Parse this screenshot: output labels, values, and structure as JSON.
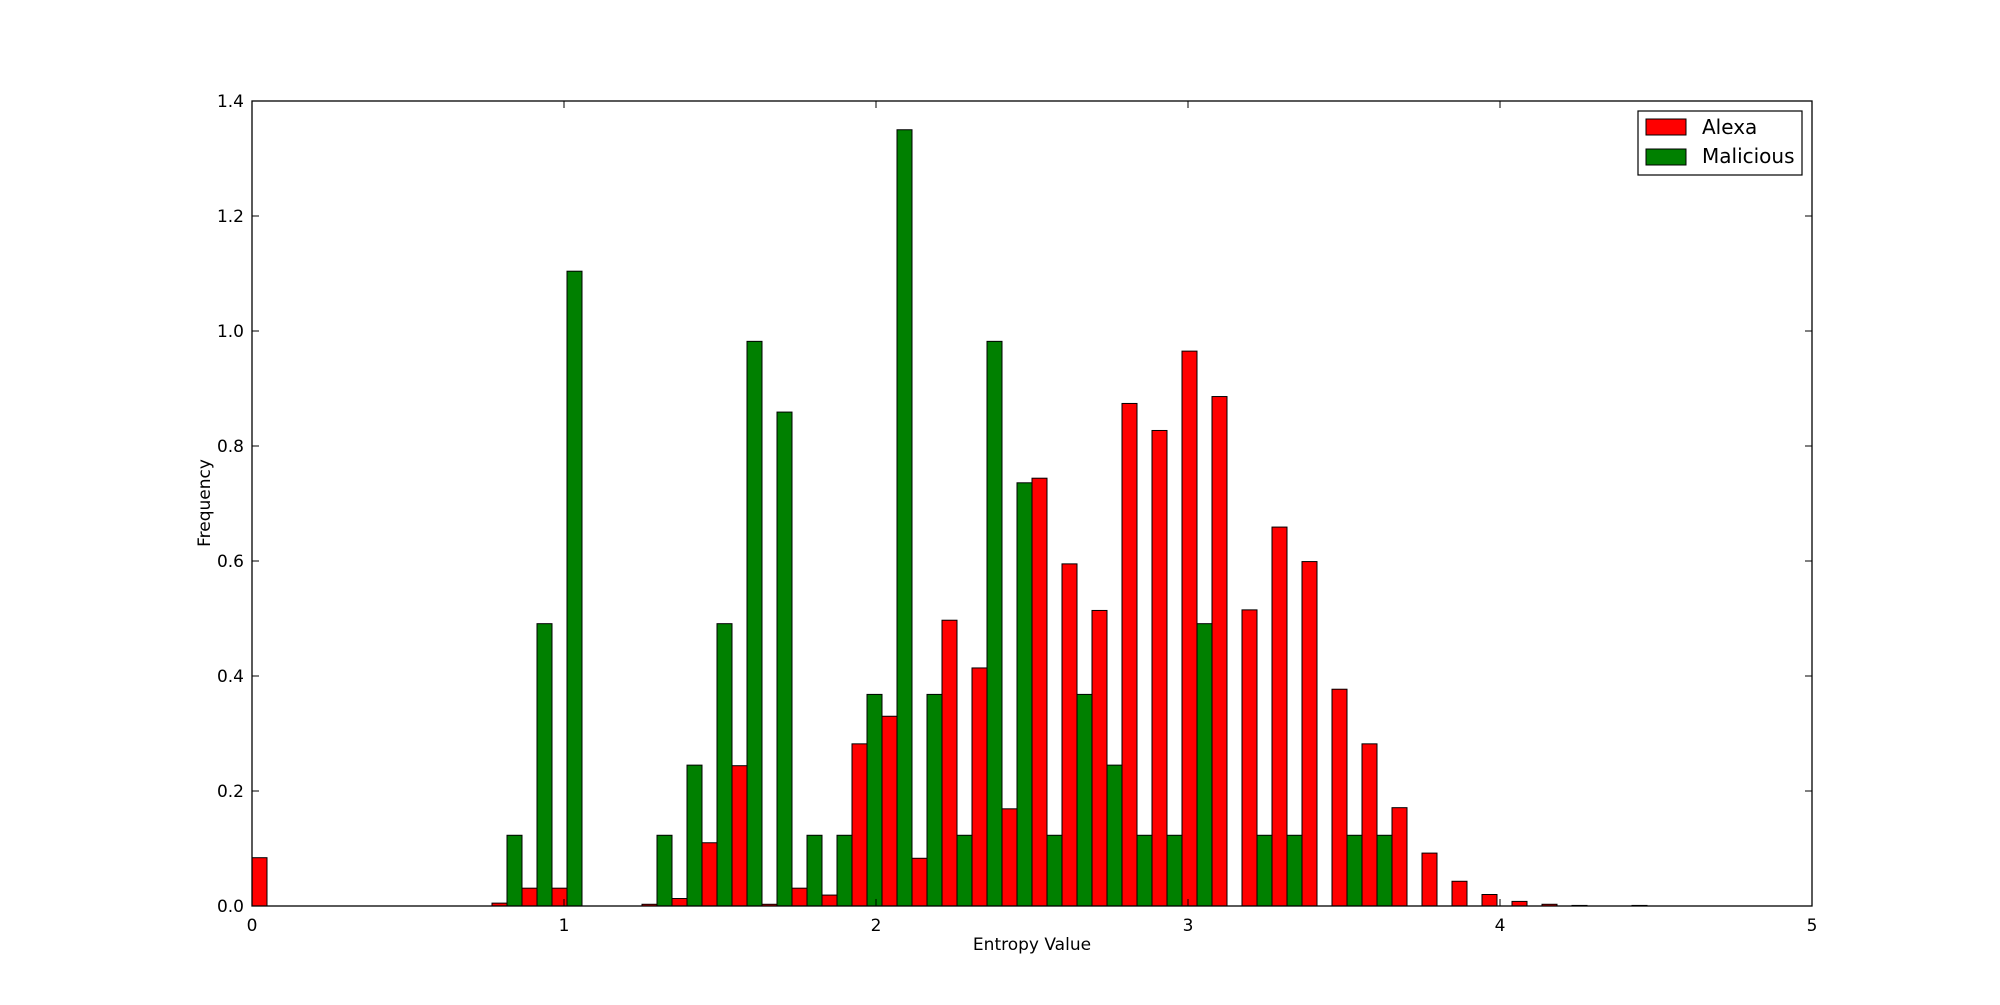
{
  "chart_data": {
    "type": "bar",
    "title": "",
    "xlabel": "Entropy Value",
    "ylabel": "Frequency",
    "xlim": [
      0,
      5
    ],
    "ylim": [
      0,
      1.4
    ],
    "xticks": [
      "0",
      "1",
      "2",
      "3",
      "4",
      "5"
    ],
    "yticks": [
      "0.0",
      "0.2",
      "0.4",
      "0.6",
      "0.8",
      "1.0",
      "1.2",
      "1.4"
    ],
    "grid": false,
    "legend_position": "top-right",
    "bins": 52,
    "series": [
      {
        "name": "Alexa",
        "color": "#ff0000",
        "values": [
          0.084,
          0.0,
          0.0,
          0.0,
          0.0,
          0.0,
          0.0,
          0.0,
          0.005,
          0.031,
          0.031,
          0.0,
          0.0,
          0.003,
          0.013,
          0.11,
          0.244,
          0.003,
          0.031,
          0.019,
          0.282,
          0.33,
          0.083,
          0.497,
          0.414,
          0.169,
          0.744,
          0.595,
          0.514,
          0.874,
          0.827,
          0.965,
          0.886,
          0.515,
          0.659,
          0.599,
          0.377,
          0.282,
          0.171,
          0.092,
          0.043,
          0.02,
          0.008,
          0.003,
          0.001,
          0.0,
          0.001,
          0.0,
          0.0,
          0.0,
          0.0,
          0.0
        ]
      },
      {
        "name": "Malicious",
        "color": "#008000",
        "values": [
          0.0,
          0.0,
          0.0,
          0.0,
          0.0,
          0.0,
          0.0,
          0.0,
          0.123,
          0.491,
          1.104,
          0.0,
          0.0,
          0.123,
          0.245,
          0.491,
          0.982,
          0.859,
          0.123,
          0.123,
          0.368,
          1.35,
          0.368,
          0.123,
          0.982,
          0.736,
          0.123,
          0.368,
          0.245,
          0.123,
          0.123,
          0.491,
          0.0,
          0.123,
          0.123,
          0.0,
          0.123,
          0.123,
          0.0,
          0.0,
          0.0,
          0.0,
          0.0,
          0.0,
          0.0,
          0.0,
          0.0,
          0.0,
          0.0,
          0.0,
          0.0,
          0.0
        ]
      }
    ]
  }
}
